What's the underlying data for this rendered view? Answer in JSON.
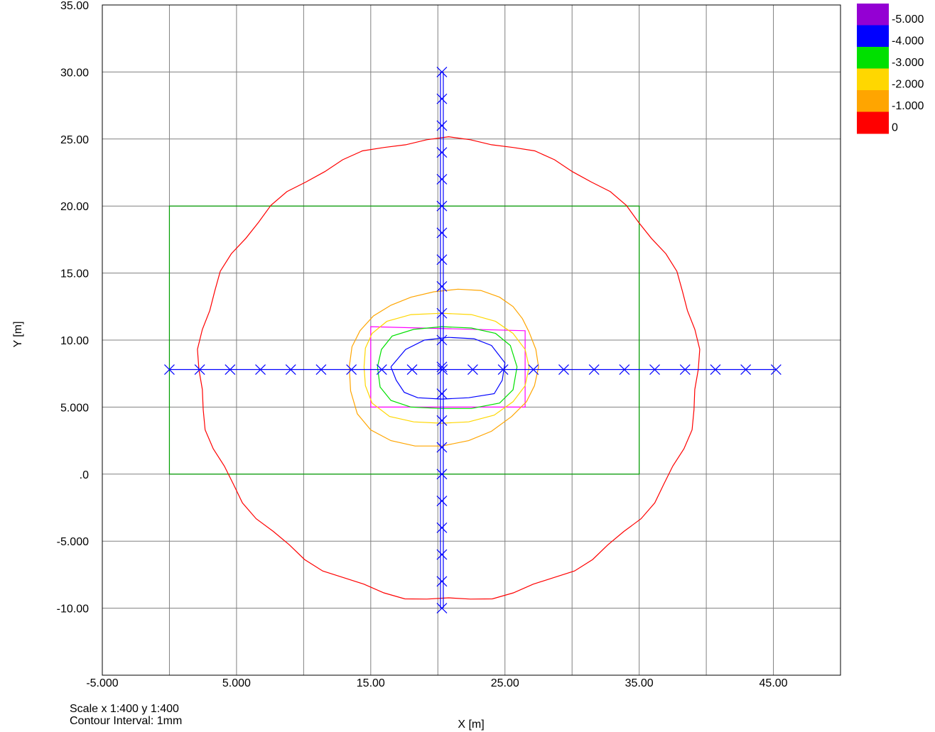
{
  "chart_data": {
    "type": "line",
    "xlabel": "X [m]",
    "ylabel": "Y [m]",
    "xlim": [
      -5,
      50
    ],
    "ylim": [
      -15,
      35
    ],
    "x_ticks": [
      -5,
      0,
      5,
      10,
      15,
      20,
      25,
      30,
      35,
      40,
      45,
      50
    ],
    "x_tick_labels": [
      {
        "x": -5,
        "label": "-5.000"
      },
      {
        "x": 5,
        "label": "5.000"
      },
      {
        "x": 15,
        "label": "15.00"
      },
      {
        "x": 25,
        "label": "25.00"
      },
      {
        "x": 35,
        "label": "35.00"
      },
      {
        "x": 45,
        "label": "45.00"
      }
    ],
    "y_ticks": [
      -15,
      -10,
      -5,
      0,
      5,
      10,
      15,
      20,
      25,
      30,
      35
    ],
    "y_tick_labels": [
      {
        "y": 35,
        "label": "35.00"
      },
      {
        "y": 30,
        "label": "30.00"
      },
      {
        "y": 25,
        "label": "25.00"
      },
      {
        "y": 20,
        "label": "20.00"
      },
      {
        "y": 15,
        "label": "15.00"
      },
      {
        "y": 10,
        "label": "10.00"
      },
      {
        "y": 5,
        "label": "5.000"
      },
      {
        "y": 0,
        "label": ".0"
      },
      {
        "y": -5,
        "label": "-5.000"
      },
      {
        "y": -10,
        "label": "-10.00"
      }
    ],
    "grid": true,
    "legend": {
      "position": "top-right",
      "entries": [
        {
          "label": "-5.000",
          "color": "#9400D3"
        },
        {
          "label": "-4.000",
          "color": "#0000FF"
        },
        {
          "label": "-3.000",
          "color": "#00E000"
        },
        {
          "label": "-2.000",
          "color": "#FFD700"
        },
        {
          "label": "-1.000",
          "color": "#FFA500"
        },
        {
          "label": "0",
          "color": "#FF0000"
        }
      ]
    },
    "rectangles": [
      {
        "color": "#00A000",
        "x": [
          0,
          35
        ],
        "y": [
          0,
          20
        ]
      },
      {
        "color": "#FF00FF",
        "points": [
          [
            15,
            5
          ],
          [
            15,
            11
          ],
          [
            26.5,
            10.7
          ],
          [
            26.5,
            5
          ],
          [
            15,
            5
          ]
        ]
      }
    ],
    "contours": [
      {
        "level": "0",
        "color": "#FF0000",
        "cx": 20.8,
        "cy": 7.8,
        "rx": 18.6,
        "ry": 17.2
      },
      {
        "level": "-1.000",
        "color": "#FFA500",
        "points": [
          [
            13.4,
            8.0
          ],
          [
            13.6,
            9.5
          ],
          [
            14.2,
            10.7
          ],
          [
            15.2,
            11.8
          ],
          [
            16.5,
            12.6
          ],
          [
            18.0,
            13.2
          ],
          [
            19.7,
            13.6
          ],
          [
            21.5,
            13.8
          ],
          [
            23.2,
            13.7
          ],
          [
            24.6,
            13.2
          ],
          [
            25.6,
            12.5
          ],
          [
            26.3,
            11.6
          ],
          [
            26.8,
            10.6
          ],
          [
            27.3,
            9.3
          ],
          [
            27.5,
            8.0
          ],
          [
            27.2,
            6.6
          ],
          [
            26.6,
            5.4
          ],
          [
            25.5,
            4.3
          ],
          [
            24.0,
            3.2
          ],
          [
            22.3,
            2.5
          ],
          [
            20.3,
            2.1
          ],
          [
            18.3,
            2.1
          ],
          [
            16.5,
            2.5
          ],
          [
            15.0,
            3.3
          ],
          [
            14.0,
            4.5
          ],
          [
            13.5,
            6.2
          ],
          [
            13.4,
            8.0
          ]
        ]
      },
      {
        "level": "-2.000",
        "color": "#FFD700",
        "points": [
          [
            14.5,
            8.0
          ],
          [
            14.6,
            9.4
          ],
          [
            15.1,
            10.5
          ],
          [
            16.2,
            11.4
          ],
          [
            18.0,
            11.9
          ],
          [
            20.3,
            12.0
          ],
          [
            22.5,
            11.9
          ],
          [
            24.3,
            11.4
          ],
          [
            25.6,
            10.5
          ],
          [
            26.5,
            9.3
          ],
          [
            26.8,
            8.0
          ],
          [
            26.5,
            6.6
          ],
          [
            25.6,
            5.4
          ],
          [
            24.2,
            4.4
          ],
          [
            22.3,
            3.9
          ],
          [
            20.3,
            3.8
          ],
          [
            18.2,
            3.9
          ],
          [
            16.4,
            4.3
          ],
          [
            15.1,
            5.3
          ],
          [
            14.6,
            6.6
          ],
          [
            14.5,
            8.0
          ]
        ]
      },
      {
        "level": "-3.000",
        "color": "#00E000",
        "points": [
          [
            15.5,
            8.0
          ],
          [
            15.8,
            9.3
          ],
          [
            16.6,
            10.3
          ],
          [
            18.2,
            10.8
          ],
          [
            20.3,
            11.0
          ],
          [
            22.5,
            10.9
          ],
          [
            24.3,
            10.5
          ],
          [
            25.4,
            9.6
          ],
          [
            25.9,
            8.0
          ],
          [
            25.6,
            6.3
          ],
          [
            24.6,
            5.3
          ],
          [
            22.5,
            4.9
          ],
          [
            20.3,
            4.9
          ],
          [
            18.0,
            5.0
          ],
          [
            16.5,
            5.5
          ],
          [
            15.7,
            6.5
          ],
          [
            15.5,
            8.0
          ]
        ]
      },
      {
        "level": "-4.000",
        "color": "#0000FF",
        "points": [
          [
            16.5,
            8.0
          ],
          [
            17.6,
            9.3
          ],
          [
            19.0,
            10.0
          ],
          [
            20.8,
            10.2
          ],
          [
            22.7,
            10.1
          ],
          [
            24.0,
            9.6
          ],
          [
            25.0,
            8.3
          ],
          [
            24.8,
            7.0
          ],
          [
            24.2,
            6.0
          ],
          [
            22.3,
            5.7
          ],
          [
            20.3,
            5.6
          ],
          [
            18.5,
            5.7
          ],
          [
            17.5,
            6.1
          ],
          [
            16.9,
            7.0
          ],
          [
            16.5,
            8.0
          ]
        ]
      }
    ],
    "survey_points": {
      "color": "#0000FF",
      "horizontal_line": {
        "y": 7.8,
        "x": [
          0,
          45.2
        ],
        "points_x": [
          0,
          2.26,
          4.52,
          6.78,
          9.04,
          11.3,
          13.56,
          15.82,
          18.08,
          20.34,
          22.6,
          24.86,
          27.12,
          29.38,
          31.64,
          33.9,
          36.16,
          38.42,
          40.68,
          42.94,
          45.2
        ]
      },
      "vertical_line": {
        "x": 20.3,
        "y": [
          -10,
          30
        ],
        "points_y": [
          -10,
          -8,
          -6,
          -4,
          -2,
          0,
          2,
          4,
          6,
          8,
          10,
          12,
          14,
          16,
          18,
          20,
          22,
          24,
          26,
          28,
          30
        ]
      }
    }
  },
  "footer": {
    "scale": "Scale x 1:400  y 1:400",
    "contour_interval": "Contour Interval:  1mm"
  }
}
